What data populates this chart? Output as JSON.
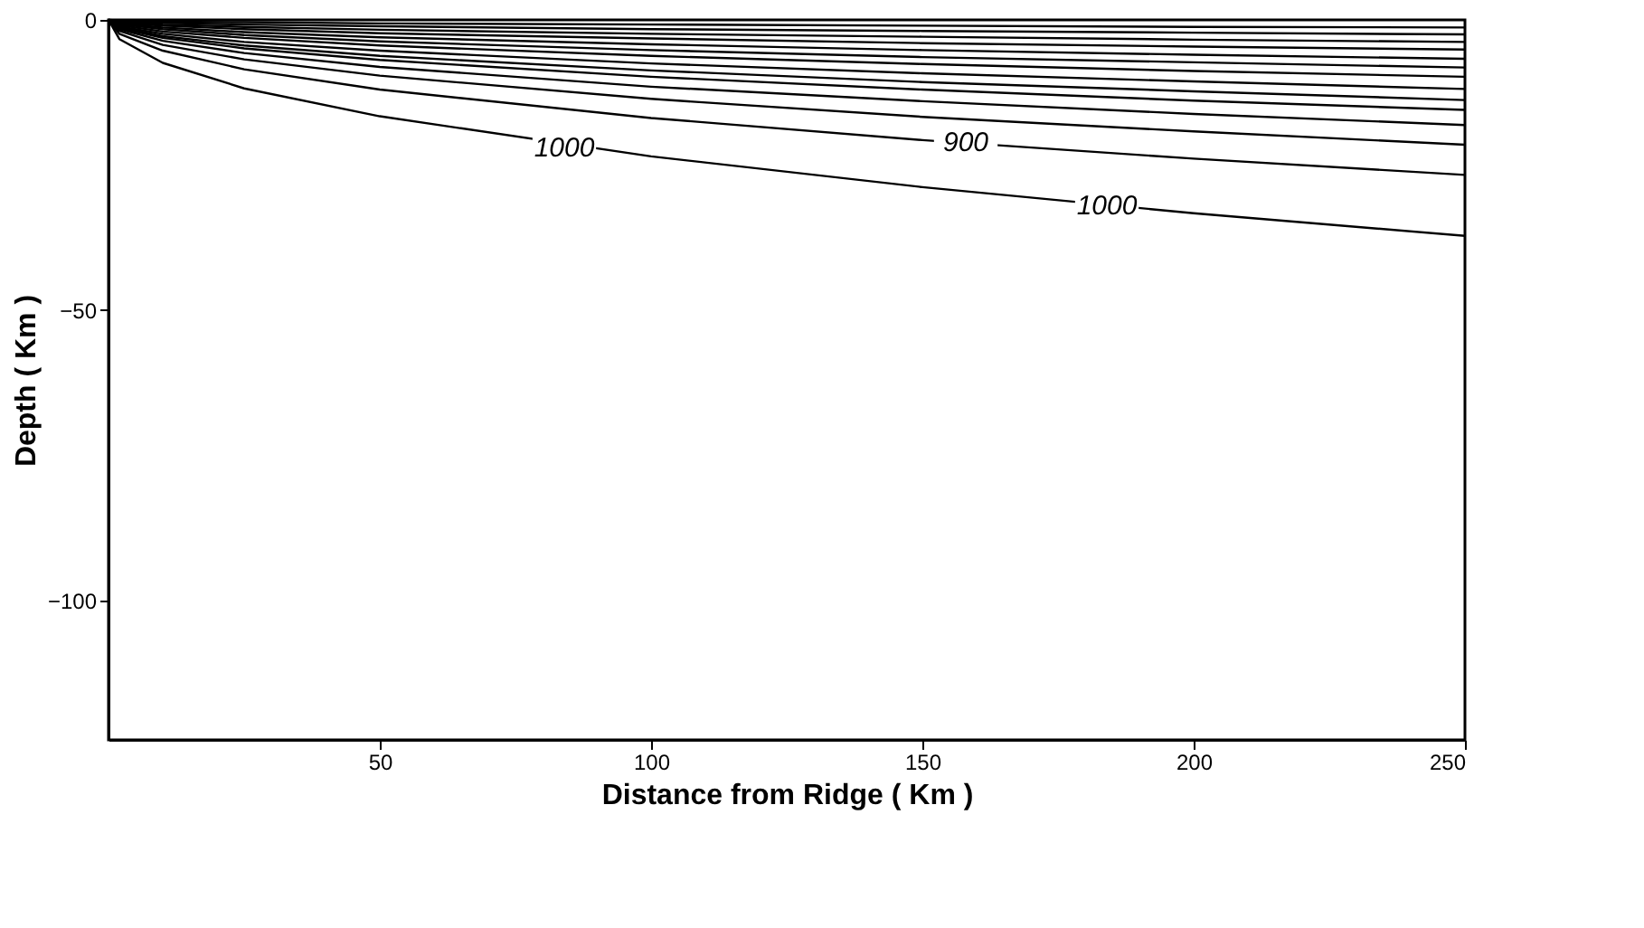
{
  "chart_data": {
    "type": "line",
    "xlabel": "Distance from Ridge ( Km )",
    "ylabel": "Depth ( Km )",
    "x": [
      0,
      2,
      10,
      25,
      50,
      100,
      150,
      200,
      250
    ],
    "series": [
      {
        "color": "#000000",
        "values": [
          0,
          -0.1,
          -0.3,
          -0.4,
          -0.6,
          -0.8,
          -1.0,
          -1.2,
          -1.3
        ]
      },
      {
        "color": "#000000",
        "values": [
          0,
          -0.2,
          -0.5,
          -0.8,
          -1.1,
          -1.6,
          -1.9,
          -2.2,
          -2.5
        ]
      },
      {
        "color": "#000000",
        "values": [
          0,
          -0.3,
          -0.8,
          -1.2,
          -1.7,
          -2.4,
          -2.9,
          -3.4,
          -3.8
        ]
      },
      {
        "color": "#000000",
        "values": [
          0,
          -0.5,
          -1.0,
          -1.6,
          -2.3,
          -3.2,
          -4.0,
          -4.6,
          -5.1
        ]
      },
      {
        "color": "#000000",
        "values": [
          0,
          -0.6,
          -1.3,
          -2.1,
          -3.0,
          -4.2,
          -5.2,
          -6.0,
          -6.7
        ]
      },
      {
        "color": "#000000",
        "values": [
          0,
          -0.7,
          -1.6,
          -2.6,
          -3.7,
          -5.2,
          -6.4,
          -7.3,
          -8.2
        ]
      },
      {
        "color": "#000000",
        "values": [
          0,
          -0.9,
          -2.0,
          -3.1,
          -4.4,
          -6.2,
          -7.6,
          -8.8,
          -9.8
        ]
      },
      {
        "color": "#000000",
        "values": [
          0,
          -1.1,
          -2.4,
          -3.8,
          -5.3,
          -7.5,
          -9.2,
          -10.6,
          -11.9
        ]
      },
      {
        "color": "#000000",
        "values": [
          0,
          -1.2,
          -2.8,
          -4.4,
          -6.2,
          -8.7,
          -10.7,
          -12.3,
          -13.8
        ]
      },
      {
        "color": "#000000",
        "values": [
          0,
          -1.4,
          -3.1,
          -4.9,
          -6.9,
          -9.8,
          -12.0,
          -13.9,
          -15.5
        ]
      },
      {
        "color": "#000000",
        "values": [
          0,
          -1.6,
          -3.6,
          -5.7,
          -8.1,
          -11.5,
          -14.0,
          -16.2,
          -18.1
        ]
      },
      {
        "color": "#000000",
        "values": [
          0,
          -1.9,
          -4.3,
          -6.8,
          -9.6,
          -13.6,
          -16.7,
          -19.2,
          -21.5
        ]
      },
      {
        "color": "#000000",
        "values": [
          0,
          -2.4,
          -5.3,
          -8.5,
          -12.0,
          -16.9,
          -20.7,
          -23.9,
          -26.7
        ]
      },
      {
        "color": "#000000",
        "values": [
          0,
          -3.3,
          -7.4,
          -11.8,
          -16.6,
          -23.5,
          -28.8,
          -33.3,
          -37.2
        ]
      }
    ],
    "annotations": [
      {
        "text": "1000",
        "x": 84,
        "y": -22
      },
      {
        "text": "900",
        "x": 158,
        "y": -21
      },
      {
        "text": "1000",
        "x": 184,
        "y": -32
      }
    ],
    "xlim": [
      0,
      250
    ],
    "ylim": [
      -124,
      0
    ],
    "xticks": [
      50,
      100,
      150,
      200,
      250
    ],
    "yticks": [
      0,
      -50,
      -100
    ],
    "grid": false,
    "legend": false,
    "line_style": "solid",
    "marker": "none"
  }
}
